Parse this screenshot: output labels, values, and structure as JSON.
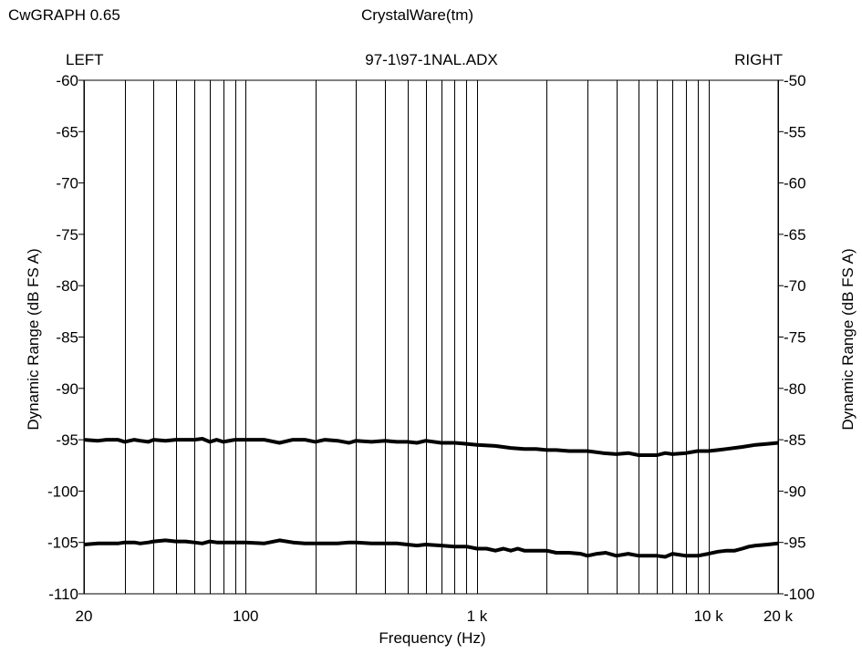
{
  "header": {
    "app_title": "CwGRAPH  0.65",
    "vendor": "CrystalWare(tm)"
  },
  "chart_data": {
    "type": "line",
    "title": "97-1\\97-1NAL.ADX",
    "left_label": "LEFT",
    "right_label": "RIGHT",
    "xlabel": "Frequency (Hz)",
    "ylabel_left": "Dynamic Range (dB FS A)",
    "ylabel_right": "Dynamic Range (dB FS A)",
    "x_scale": "log",
    "xlim": [
      20,
      20000
    ],
    "x_ticks": [
      {
        "value": 20,
        "label": "20"
      },
      {
        "value": 100,
        "label": "100"
      },
      {
        "value": 1000,
        "label": "1 k"
      },
      {
        "value": 10000,
        "label": "10 k"
      },
      {
        "value": 20000,
        "label": "20 k"
      }
    ],
    "x_gridlines": [
      20,
      30,
      40,
      50,
      60,
      70,
      80,
      90,
      100,
      200,
      300,
      400,
      500,
      600,
      700,
      800,
      900,
      1000,
      2000,
      3000,
      4000,
      5000,
      6000,
      7000,
      8000,
      9000,
      10000,
      20000
    ],
    "ylim_left": [
      -110,
      -60
    ],
    "ylim_right": [
      -100,
      -50
    ],
    "y_ticks_left": [
      "-60",
      "-65",
      "-70",
      "-75",
      "-80",
      "-85",
      "-90",
      "-95",
      "-100",
      "-105",
      "-110"
    ],
    "y_ticks_right": [
      "-50",
      "-55",
      "-60",
      "-65",
      "-70",
      "-75",
      "-80",
      "-85",
      "-90",
      "-95",
      "-100"
    ],
    "grid": "vertical",
    "series": [
      {
        "axis": "left",
        "color": "#000000",
        "x": [
          20,
          23,
          25,
          28,
          30,
          33,
          35,
          38,
          40,
          45,
          50,
          55,
          60,
          65,
          70,
          75,
          80,
          90,
          100,
          120,
          140,
          160,
          180,
          200,
          220,
          250,
          280,
          300,
          350,
          400,
          450,
          500,
          550,
          600,
          700,
          800,
          900,
          1000,
          1200,
          1400,
          1600,
          1800,
          2000,
          2200,
          2500,
          3000,
          3500,
          4000,
          4500,
          5000,
          5500,
          6000,
          6500,
          7000,
          8000,
          9000,
          10000,
          11000,
          12000,
          14000,
          16000,
          18000,
          20000
        ],
        "y": [
          -95.0,
          -95.1,
          -95.0,
          -95.0,
          -95.2,
          -95.0,
          -95.1,
          -95.2,
          -95.0,
          -95.1,
          -95.0,
          -95.0,
          -95.0,
          -94.9,
          -95.2,
          -95.0,
          -95.2,
          -95.0,
          -95.0,
          -95.0,
          -95.3,
          -95.0,
          -95.0,
          -95.2,
          -95.0,
          -95.1,
          -95.3,
          -95.1,
          -95.2,
          -95.1,
          -95.2,
          -95.2,
          -95.3,
          -95.1,
          -95.3,
          -95.3,
          -95.4,
          -95.5,
          -95.6,
          -95.8,
          -95.9,
          -95.9,
          -96.0,
          -96.0,
          -96.1,
          -96.1,
          -96.3,
          -96.4,
          -96.3,
          -96.5,
          -96.5,
          -96.5,
          -96.3,
          -96.4,
          -96.3,
          -96.1,
          -96.1,
          -96.0,
          -95.9,
          -95.7,
          -95.5,
          -95.4,
          -95.3
        ]
      },
      {
        "axis": "left",
        "color": "#000000",
        "x": [
          20,
          23,
          25,
          28,
          30,
          33,
          35,
          38,
          40,
          45,
          50,
          55,
          60,
          65,
          70,
          75,
          80,
          90,
          100,
          120,
          140,
          160,
          180,
          200,
          220,
          250,
          280,
          300,
          350,
          400,
          450,
          500,
          550,
          600,
          700,
          800,
          900,
          1000,
          1100,
          1200,
          1300,
          1400,
          1500,
          1600,
          1800,
          2000,
          2200,
          2500,
          2800,
          3000,
          3300,
          3600,
          4000,
          4500,
          5000,
          5500,
          6000,
          6500,
          7000,
          8000,
          9000,
          10000,
          11000,
          12000,
          13000,
          14000,
          15000,
          16000,
          18000,
          20000
        ],
        "y": [
          -105.2,
          -105.1,
          -105.1,
          -105.1,
          -105.0,
          -105.0,
          -105.1,
          -105.0,
          -104.9,
          -104.8,
          -104.9,
          -104.9,
          -105.0,
          -105.1,
          -104.9,
          -105.0,
          -105.0,
          -105.0,
          -105.0,
          -105.1,
          -104.8,
          -105.0,
          -105.1,
          -105.1,
          -105.1,
          -105.1,
          -105.0,
          -105.0,
          -105.1,
          -105.1,
          -105.1,
          -105.2,
          -105.3,
          -105.2,
          -105.3,
          -105.4,
          -105.4,
          -105.6,
          -105.6,
          -105.8,
          -105.6,
          -105.8,
          -105.6,
          -105.8,
          -105.8,
          -105.8,
          -106.0,
          -106.0,
          -106.1,
          -106.3,
          -106.1,
          -106.0,
          -106.3,
          -106.1,
          -106.3,
          -106.3,
          -106.3,
          -106.4,
          -106.1,
          -106.3,
          -106.3,
          -106.1,
          -105.9,
          -105.8,
          -105.8,
          -105.6,
          -105.4,
          -105.3,
          -105.2,
          -105.1
        ]
      }
    ]
  }
}
